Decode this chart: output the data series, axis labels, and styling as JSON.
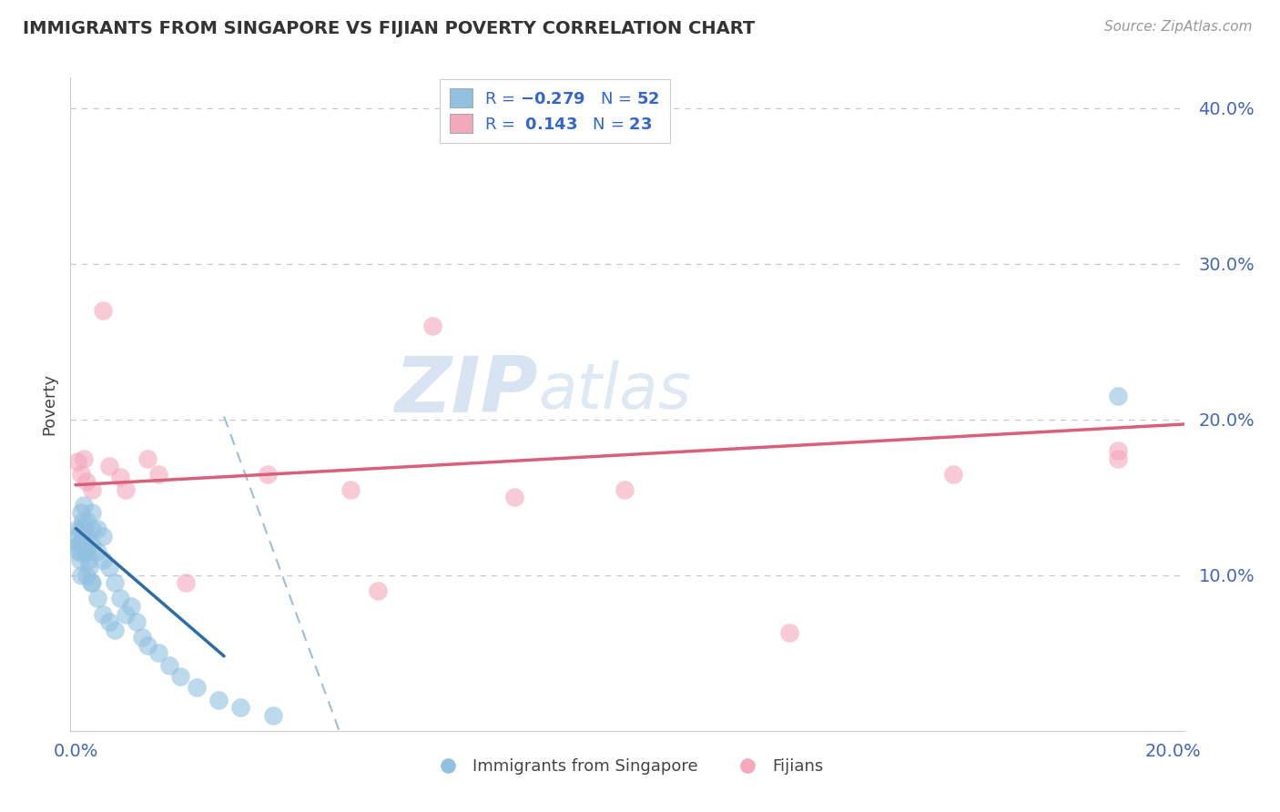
{
  "title": "IMMIGRANTS FROM SINGAPORE VS FIJIAN POVERTY CORRELATION CHART",
  "source": "Source: ZipAtlas.com",
  "ylabel": "Poverty",
  "xlim": [
    -0.001,
    0.202
  ],
  "ylim": [
    0.0,
    0.42
  ],
  "x_ticks": [
    0.0,
    0.2
  ],
  "x_tick_labels": [
    "0.0%",
    "20.0%"
  ],
  "y_ticks": [
    0.1,
    0.2,
    0.3,
    0.4
  ],
  "y_tick_labels": [
    "10.0%",
    "20.0%",
    "30.0%",
    "40.0%"
  ],
  "color_blue": "#92c0e0",
  "color_pink": "#f4a8bc",
  "color_blue_line": "#2e6da4",
  "color_pink_line": "#d9607a",
  "color_dashed_grid": "#c0c8d0",
  "watermark_zip": "ZIP",
  "watermark_atlas": "atlas",
  "blue_x": [
    0.0002,
    0.0003,
    0.0004,
    0.0005,
    0.0006,
    0.0007,
    0.0008,
    0.001,
    0.001,
    0.001,
    0.001,
    0.0012,
    0.0013,
    0.0015,
    0.0015,
    0.0016,
    0.0017,
    0.002,
    0.002,
    0.002,
    0.002,
    0.0022,
    0.0025,
    0.0027,
    0.003,
    0.003,
    0.003,
    0.003,
    0.004,
    0.004,
    0.004,
    0.005,
    0.005,
    0.005,
    0.006,
    0.006,
    0.007,
    0.007,
    0.008,
    0.009,
    0.01,
    0.011,
    0.012,
    0.013,
    0.015,
    0.017,
    0.019,
    0.022,
    0.026,
    0.03,
    0.036,
    0.19
  ],
  "blue_y": [
    0.13,
    0.125,
    0.12,
    0.115,
    0.12,
    0.115,
    0.11,
    0.14,
    0.13,
    0.12,
    0.1,
    0.135,
    0.125,
    0.145,
    0.13,
    0.12,
    0.115,
    0.135,
    0.125,
    0.115,
    0.1,
    0.11,
    0.105,
    0.095,
    0.14,
    0.13,
    0.12,
    0.095,
    0.13,
    0.115,
    0.085,
    0.125,
    0.11,
    0.075,
    0.105,
    0.07,
    0.095,
    0.065,
    0.085,
    0.075,
    0.08,
    0.07,
    0.06,
    0.055,
    0.05,
    0.042,
    0.035,
    0.028,
    0.02,
    0.015,
    0.01,
    0.215
  ],
  "pink_x": [
    0.0003,
    0.001,
    0.0015,
    0.002,
    0.003,
    0.005,
    0.006,
    0.008,
    0.009,
    0.013,
    0.015,
    0.02,
    0.035,
    0.05,
    0.055,
    0.065,
    0.08,
    0.1,
    0.13,
    0.16,
    0.19,
    0.19
  ],
  "pink_y": [
    0.173,
    0.165,
    0.175,
    0.16,
    0.155,
    0.27,
    0.17,
    0.163,
    0.155,
    0.175,
    0.165,
    0.095,
    0.165,
    0.155,
    0.09,
    0.26,
    0.15,
    0.155,
    0.063,
    0.165,
    0.175,
    0.18
  ],
  "blue_line_solid": [
    [
      0.0,
      0.027
    ],
    [
      0.13,
      0.048
    ]
  ],
  "blue_line_dashed": [
    [
      0.027,
      0.048
    ],
    [
      0.202,
      0.0
    ]
  ],
  "pink_line": [
    [
      0.0,
      0.202
    ],
    [
      0.158,
      0.197
    ]
  ]
}
